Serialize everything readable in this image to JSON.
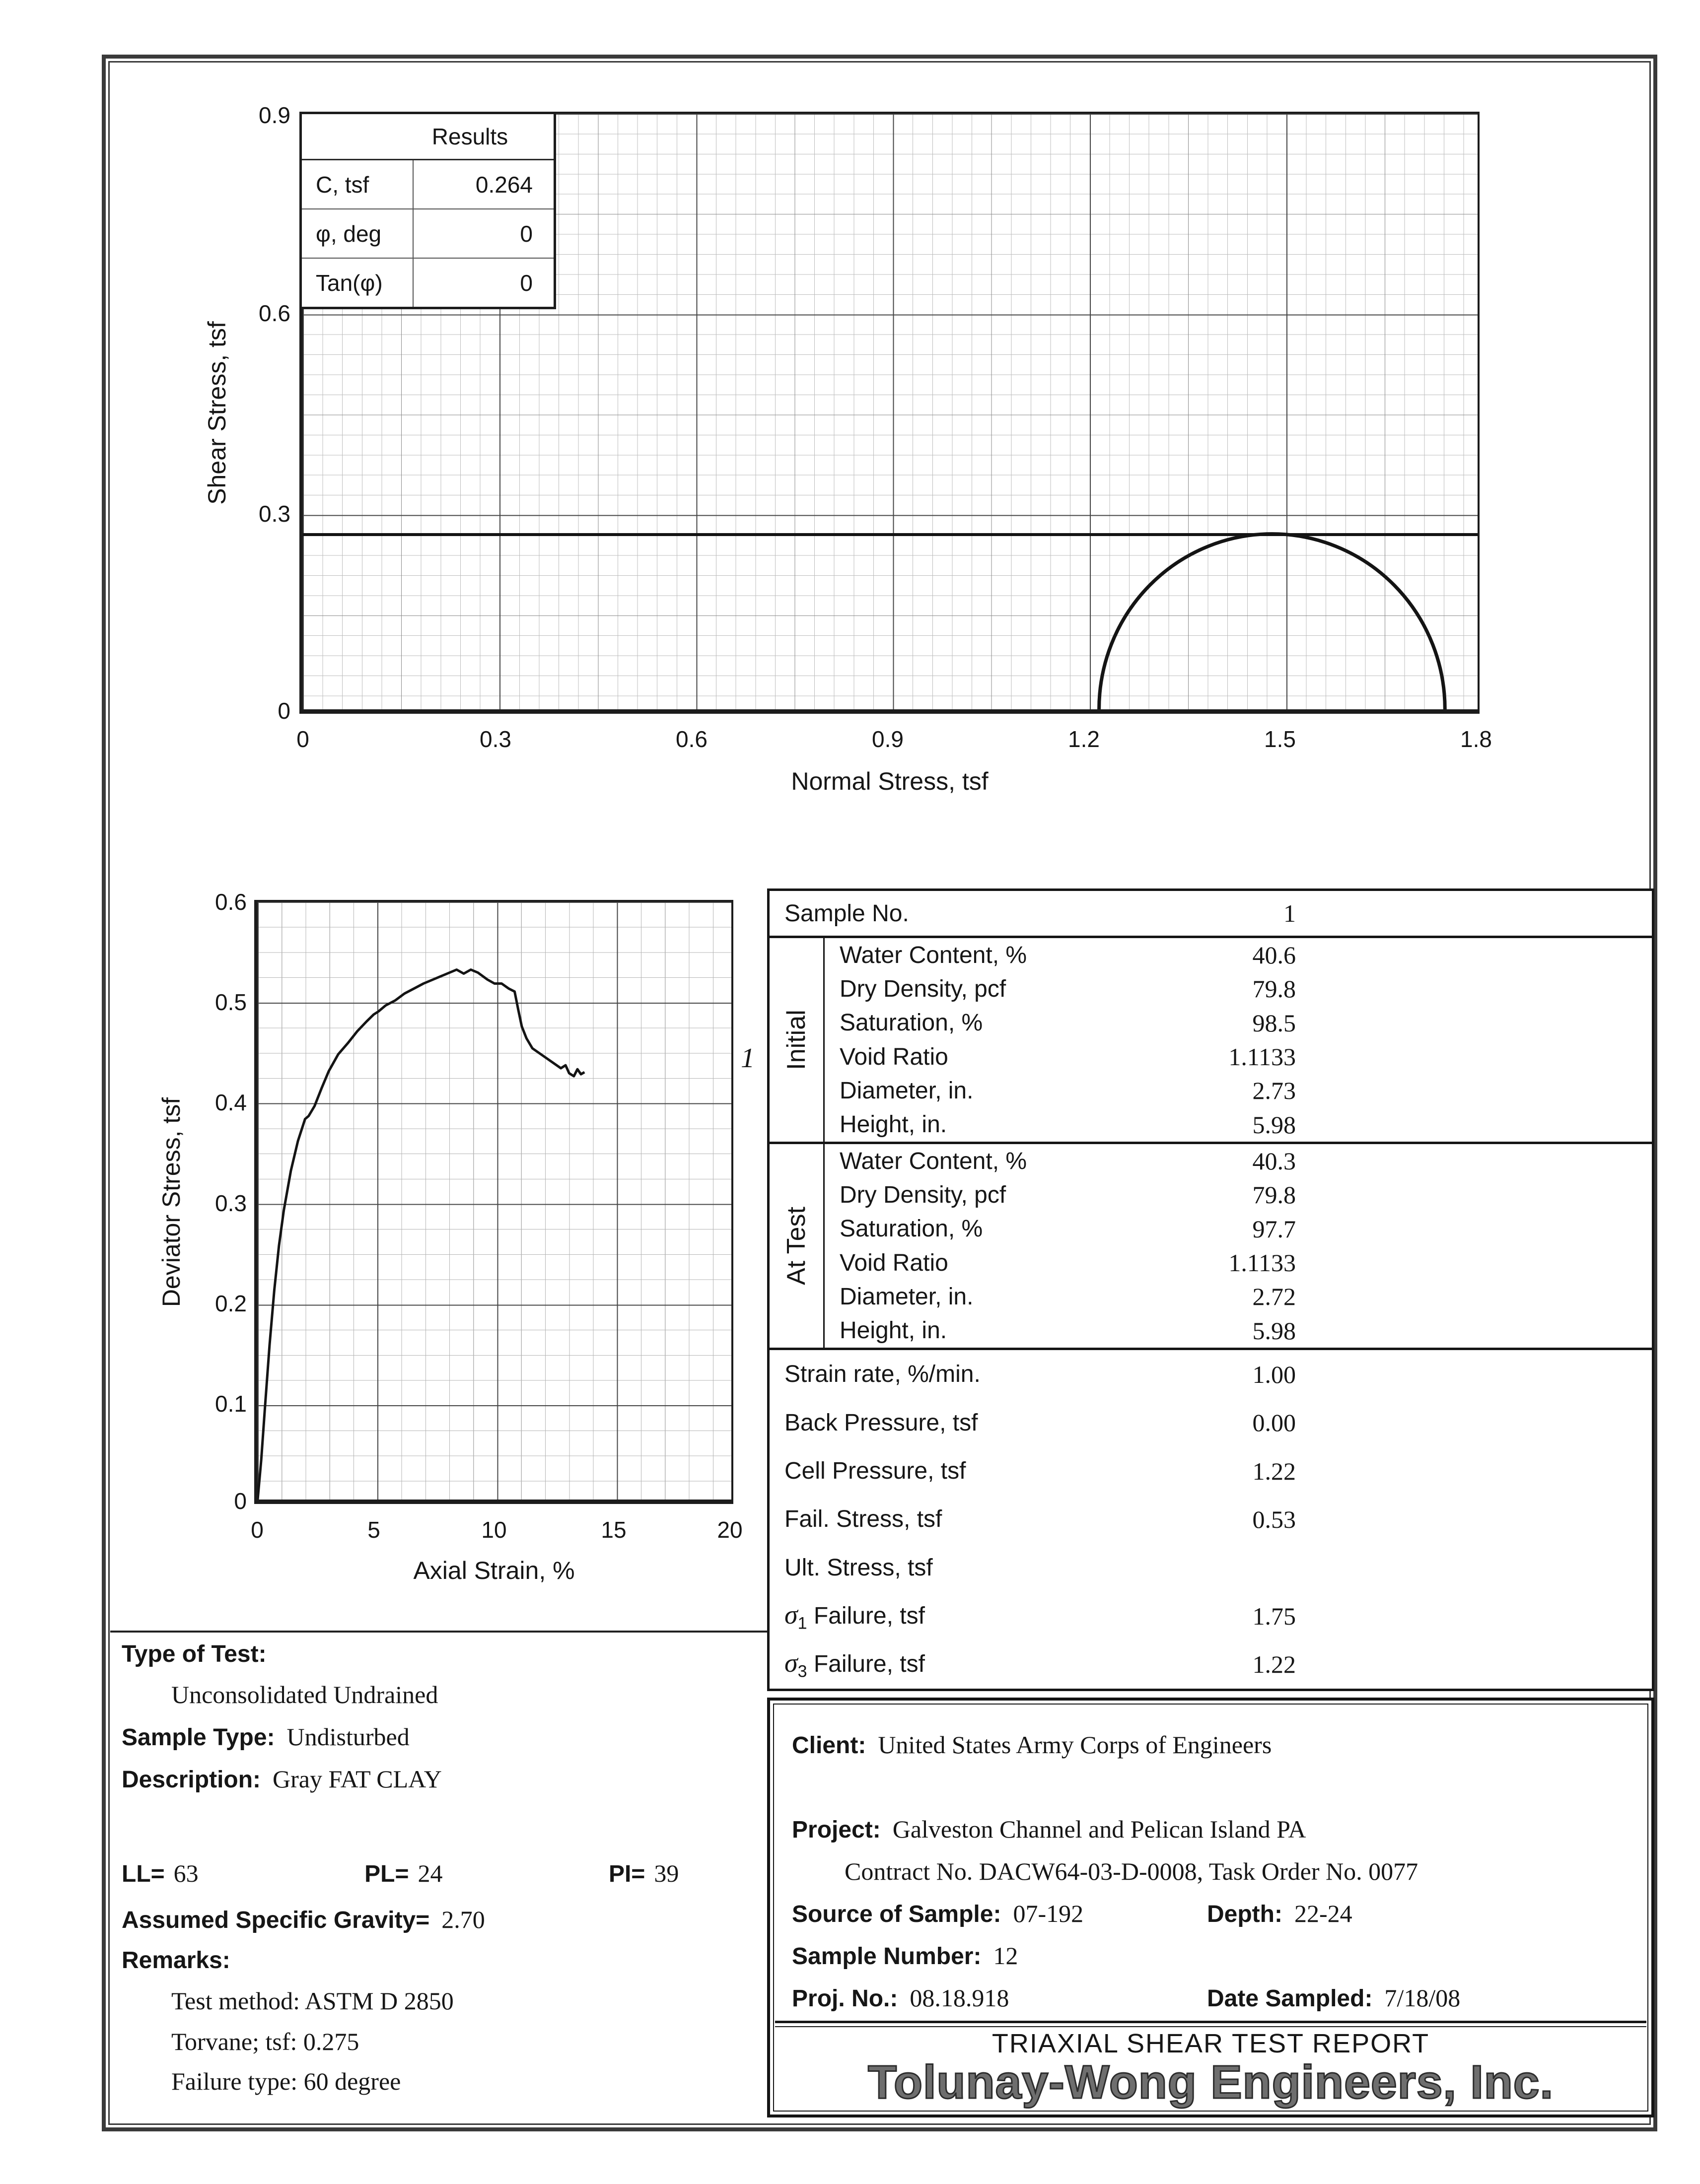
{
  "report": {
    "results_table": {
      "header": "Results",
      "rows": [
        {
          "label": "C, tsf",
          "value": "0.264"
        },
        {
          "label": "φ, deg",
          "value": "0"
        },
        {
          "label": "Tan(φ)",
          "value": "0"
        }
      ]
    },
    "sample_table": {
      "sample_no_label": "Sample No.",
      "sample_no_value": "1",
      "initial": {
        "section": "Initial",
        "rows": [
          {
            "label": "Water Content, %",
            "value": "40.6"
          },
          {
            "label": "Dry Density, pcf",
            "value": "79.8"
          },
          {
            "label": "Saturation, %",
            "value": "98.5"
          },
          {
            "label": "Void Ratio",
            "value": "1.1133"
          },
          {
            "label": "Diameter, in.",
            "value": "2.73"
          },
          {
            "label": "Height, in.",
            "value": "5.98"
          }
        ]
      },
      "at_test": {
        "section": "At Test",
        "rows": [
          {
            "label": "Water Content, %",
            "value": "40.3"
          },
          {
            "label": "Dry Density, pcf",
            "value": "79.8"
          },
          {
            "label": "Saturation, %",
            "value": "97.7"
          },
          {
            "label": "Void Ratio",
            "value": "1.1133"
          },
          {
            "label": "Diameter, in.",
            "value": "2.72"
          },
          {
            "label": "Height, in.",
            "value": "5.98"
          }
        ]
      },
      "params": [
        {
          "label": "Strain rate, %/min.",
          "value": "1.00"
        },
        {
          "label": "Back Pressure, tsf",
          "value": "0.00"
        },
        {
          "label": "Cell Pressure, tsf",
          "value": "1.22"
        },
        {
          "label": "Fail. Stress, tsf",
          "value": "0.53"
        },
        {
          "label": "Ult. Stress, tsf",
          "value": ""
        },
        {
          "sigma": "σ",
          "sub": "1",
          "label": "Failure, tsf",
          "value": "1.75"
        },
        {
          "sigma": "σ",
          "sub": "3",
          "label": "Failure, tsf",
          "value": "1.22"
        }
      ]
    },
    "test_info": {
      "type_of_test_label": "Type of Test:",
      "type_of_test_value": "Unconsolidated Undrained",
      "sample_type_label": "Sample Type:",
      "sample_type_value": "Undisturbed",
      "description_label": "Description:",
      "description_value": "Gray FAT CLAY",
      "atterberg": [
        {
          "label": "LL=",
          "value": "63"
        },
        {
          "label": "PL=",
          "value": "24"
        },
        {
          "label": "PI=",
          "value": "39"
        }
      ],
      "sg_label": "Assumed Specific Gravity=",
      "sg_value": "2.70",
      "remarks_label": "Remarks:",
      "remarks": [
        "Test method: ASTM D 2850",
        "Torvane; tsf: 0.275",
        "Failure type: 60 degree"
      ]
    },
    "project_info": {
      "client_label": "Client:",
      "client": "United States Army Corps of Engineers",
      "project_label": "Project:",
      "project": "Galveston Channel and Pelican Island PA",
      "contract": "Contract No. DACW64-03-D-0008, Task Order No. 0077",
      "source_label": "Source of Sample:",
      "source": "07-192",
      "depth_label": "Depth:",
      "depth": "22-24",
      "sample_number_label": "Sample Number:",
      "sample_number": "12",
      "proj_no_label": "Proj. No.:",
      "proj_no": "08.18.918",
      "date_label": "Date Sampled:",
      "date": "7/18/08",
      "report_title": "TRIAXIAL SHEAR TEST REPORT",
      "company": "Tolunay-Wong Engineers, Inc."
    }
  },
  "chart_data": [
    {
      "id": "mohr",
      "type": "line",
      "title": "Mohr circle failure envelope",
      "xlabel": "Normal Stress, tsf",
      "ylabel": "Shear Stress, tsf",
      "xlim": [
        0,
        1.8
      ],
      "ylim": [
        0,
        0.9
      ],
      "x_tick_labels": [
        "0",
        "0.3",
        "0.6",
        "0.9",
        "1.2",
        "1.5",
        "1.8"
      ],
      "y_tick_labels": [
        "0.9",
        "0.6",
        "0.3",
        "0"
      ],
      "grid": "fine graph paper, major every 0.3, minor every 0.03",
      "envelope_c_tsf": 0.264,
      "phi_deg": 0,
      "circles": [
        {
          "sigma3": 1.22,
          "sigma1": 1.75
        }
      ]
    },
    {
      "id": "stress_strain",
      "type": "line",
      "title": "Deviator stress vs axial strain",
      "xlabel": "Axial Strain, %",
      "ylabel": "Deviator Stress, tsf",
      "xlim": [
        0,
        20
      ],
      "ylim": [
        0,
        0.6
      ],
      "x_tick_labels": [
        "0",
        "5",
        "10",
        "15",
        "20"
      ],
      "y_tick_labels": [
        "0.6",
        "0.5",
        "0.4",
        "0.3",
        "0.2",
        "0.1",
        "0"
      ],
      "grid": "major every 5 (x) / 0.1 (y), minor every 1 (x) / 0.025 (y)",
      "series": [
        {
          "name": "1",
          "points": [
            [
              0,
              0
            ],
            [
              0.15,
              0.04
            ],
            [
              0.3,
              0.09
            ],
            [
              0.5,
              0.155
            ],
            [
              0.7,
              0.21
            ],
            [
              0.9,
              0.255
            ],
            [
              1.1,
              0.29
            ],
            [
              1.4,
              0.33
            ],
            [
              1.7,
              0.36
            ],
            [
              2.0,
              0.382
            ],
            [
              2.15,
              0.385
            ],
            [
              2.4,
              0.395
            ],
            [
              2.7,
              0.413
            ],
            [
              3.0,
              0.43
            ],
            [
              3.4,
              0.447
            ],
            [
              3.8,
              0.458
            ],
            [
              4.2,
              0.47
            ],
            [
              4.6,
              0.48
            ],
            [
              4.9,
              0.487
            ],
            [
              5.1,
              0.49
            ],
            [
              5.4,
              0.496
            ],
            [
              5.8,
              0.501
            ],
            [
              6.2,
              0.508
            ],
            [
              6.6,
              0.513
            ],
            [
              7.0,
              0.518
            ],
            [
              7.4,
              0.522
            ],
            [
              7.8,
              0.526
            ],
            [
              8.1,
              0.529
            ],
            [
              8.4,
              0.532
            ],
            [
              8.7,
              0.528
            ],
            [
              9.0,
              0.532
            ],
            [
              9.3,
              0.529
            ],
            [
              9.7,
              0.522
            ],
            [
              10.0,
              0.518
            ],
            [
              10.3,
              0.518
            ],
            [
              10.6,
              0.513
            ],
            [
              10.85,
              0.51
            ],
            [
              11.0,
              0.492
            ],
            [
              11.15,
              0.475
            ],
            [
              11.35,
              0.463
            ],
            [
              11.6,
              0.453
            ],
            [
              11.9,
              0.448
            ],
            [
              12.2,
              0.443
            ],
            [
              12.5,
              0.438
            ],
            [
              12.8,
              0.433
            ],
            [
              13.0,
              0.436
            ],
            [
              13.15,
              0.428
            ],
            [
              13.35,
              0.425
            ],
            [
              13.5,
              0.432
            ],
            [
              13.65,
              0.427
            ],
            [
              13.8,
              0.429
            ]
          ]
        }
      ]
    }
  ]
}
